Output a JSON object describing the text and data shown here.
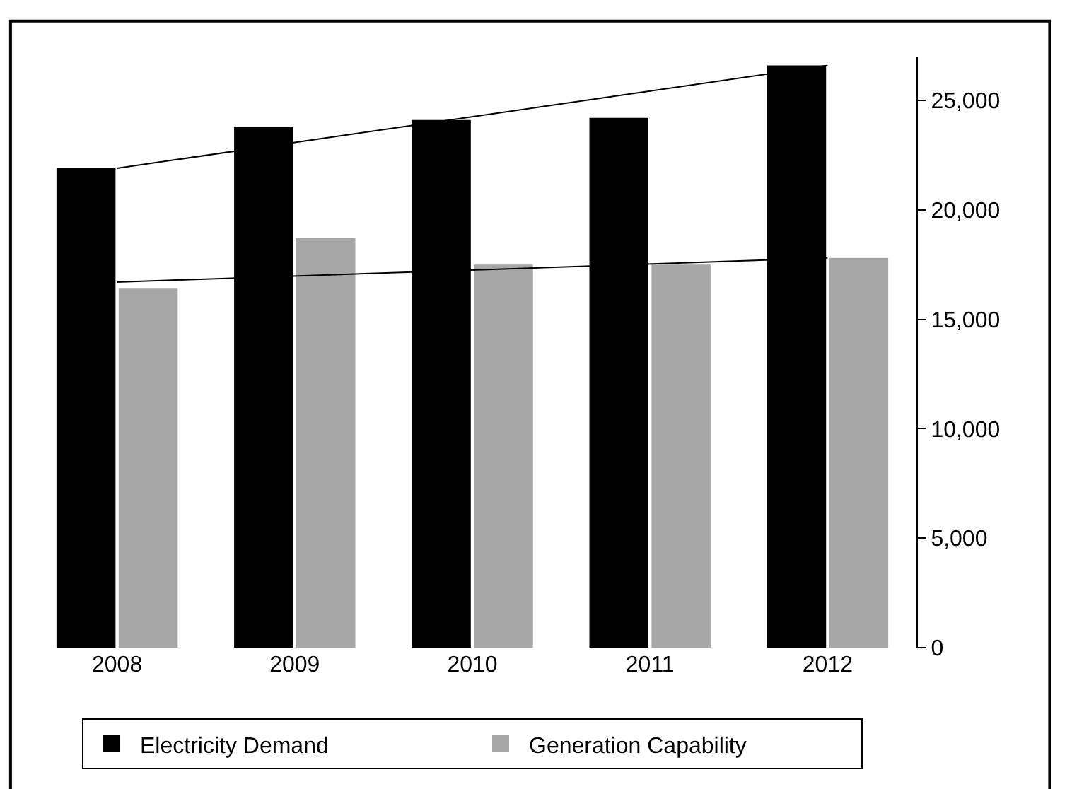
{
  "chart_data": {
    "type": "bar",
    "categories": [
      "2008",
      "2009",
      "2010",
      "2011",
      "2012"
    ],
    "series": [
      {
        "name": "Electricity Demand",
        "color": "#000000",
        "values": [
          21900,
          23800,
          24100,
          24200,
          26600
        ]
      },
      {
        "name": "Generation Capability",
        "color": "#a6a6a6",
        "values": [
          16400,
          18700,
          17500,
          17500,
          17800
        ]
      },
      {
        "type": "line",
        "color": "#000000",
        "values": [
          21900,
          null,
          null,
          null,
          26600
        ]
      },
      {
        "type": "line",
        "color": "#000000",
        "values": [
          16700,
          null,
          null,
          null,
          17800
        ]
      }
    ],
    "ylim": [
      0,
      27000
    ],
    "yticks": [
      0,
      {
        "value": 5000,
        "label": "5,000"
      },
      {
        "value": 10000,
        "label": "10,000"
      },
      {
        "value": 15000,
        "label": "15,000"
      },
      {
        "value": 20000,
        "label": "20,000"
      },
      {
        "value": 25000,
        "label": "25,000"
      }
    ],
    "legend": "bottom",
    "marker": "none"
  }
}
